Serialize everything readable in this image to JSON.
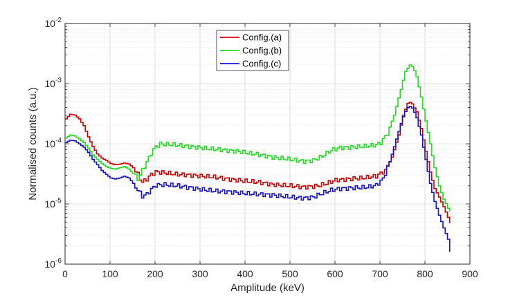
{
  "chart_data": {
    "type": "line",
    "title": "",
    "xlabel": "Amplitude (keV)",
    "ylabel": "Normalised counts (a.u.)",
    "xlim": [
      0,
      900
    ],
    "ylim": [
      1e-06,
      0.01
    ],
    "yscale": "log",
    "xticks": [
      0,
      100,
      200,
      300,
      400,
      500,
      600,
      700,
      800,
      900
    ],
    "xtick_labels": [
      "0",
      "100",
      "200",
      "300",
      "400",
      "500",
      "600",
      "700",
      "800",
      "900"
    ],
    "yticks": [
      1e-06,
      1e-05,
      0.0001,
      0.001,
      0.01
    ],
    "ytick_labels": [
      {
        "base": "10",
        "exp": "-6"
      },
      {
        "base": "10",
        "exp": "-5"
      },
      {
        "base": "10",
        "exp": "-4"
      },
      {
        "base": "10",
        "exp": "-3"
      },
      {
        "base": "10",
        "exp": "-2"
      }
    ],
    "grid": true,
    "legend_position": "top-center",
    "series": [
      {
        "name": "Config.(a)",
        "color": "#d40000",
        "points": [
          [
            0,
            0.00026
          ],
          [
            10,
            0.00031
          ],
          [
            20,
            0.0003
          ],
          [
            30,
            0.00026
          ],
          [
            40,
            0.0002
          ],
          [
            50,
            0.00013
          ],
          [
            60,
            9e-05
          ],
          [
            70,
            6.8e-05
          ],
          [
            80,
            5.8e-05
          ],
          [
            90,
            5.3e-05
          ],
          [
            100,
            4.7e-05
          ],
          [
            110,
            4.5e-05
          ],
          [
            120,
            4.6e-05
          ],
          [
            130,
            4.8e-05
          ],
          [
            140,
            4.6e-05
          ],
          [
            150,
            4e-05
          ],
          [
            160,
            3.1e-05
          ],
          [
            170,
            2.3e-05
          ],
          [
            180,
            2.6e-05
          ],
          [
            190,
            3.1e-05
          ],
          [
            200,
            3.4e-05
          ],
          [
            220,
            3.3e-05
          ],
          [
            250,
            3.1e-05
          ],
          [
            280,
            3e-05
          ],
          [
            300,
            2.9e-05
          ],
          [
            330,
            2.8e-05
          ],
          [
            360,
            2.6e-05
          ],
          [
            400,
            2.4e-05
          ],
          [
            430,
            2.3e-05
          ],
          [
            460,
            2.1e-05
          ],
          [
            500,
            2e-05
          ],
          [
            530,
            1.9e-05
          ],
          [
            560,
            2e-05
          ],
          [
            580,
            2.2e-05
          ],
          [
            600,
            2.5e-05
          ],
          [
            630,
            2.6e-05
          ],
          [
            660,
            2.7e-05
          ],
          [
            690,
            2.9e-05
          ],
          [
            710,
            3.6e-05
          ],
          [
            725,
            6e-05
          ],
          [
            740,
            0.00014
          ],
          [
            750,
            0.0003
          ],
          [
            760,
            0.00047
          ],
          [
            765,
            0.00049
          ],
          [
            770,
            0.00046
          ],
          [
            780,
            0.00034
          ],
          [
            790,
            0.00018
          ],
          [
            800,
            7.5e-05
          ],
          [
            810,
            3.4e-05
          ],
          [
            820,
            1.8e-05
          ],
          [
            830,
            1.3e-05
          ],
          [
            840,
            9e-06
          ],
          [
            850,
            6e-06
          ],
          [
            855,
            4.8e-06
          ]
        ]
      },
      {
        "name": "Config.(b)",
        "color": "#1ee01e",
        "points": [
          [
            0,
            0.000125
          ],
          [
            10,
            0.00014
          ],
          [
            20,
            0.000135
          ],
          [
            30,
            0.00012
          ],
          [
            40,
            0.000105
          ],
          [
            50,
            8.5e-05
          ],
          [
            60,
            6.5e-05
          ],
          [
            70,
            5.5e-05
          ],
          [
            80,
            4.7e-05
          ],
          [
            90,
            4.2e-05
          ],
          [
            100,
            3.9e-05
          ],
          [
            110,
            3.8e-05
          ],
          [
            120,
            4e-05
          ],
          [
            130,
            4.2e-05
          ],
          [
            140,
            3.8e-05
          ],
          [
            150,
            3.2e-05
          ],
          [
            160,
            2.6e-05
          ],
          [
            170,
            3.6e-05
          ],
          [
            180,
            5e-05
          ],
          [
            190,
            7e-05
          ],
          [
            200,
            9e-05
          ],
          [
            210,
            0.0001
          ],
          [
            230,
            9.8e-05
          ],
          [
            260,
            9.3e-05
          ],
          [
            300,
            8.6e-05
          ],
          [
            340,
            8e-05
          ],
          [
            380,
            7.5e-05
          ],
          [
            420,
            6.8e-05
          ],
          [
            460,
            6e-05
          ],
          [
            500,
            5.5e-05
          ],
          [
            530,
            5.1e-05
          ],
          [
            550,
            5.3e-05
          ],
          [
            570,
            6.2e-05
          ],
          [
            590,
            7.8e-05
          ],
          [
            610,
            8.6e-05
          ],
          [
            640,
            8.8e-05
          ],
          [
            670,
            9.2e-05
          ],
          [
            690,
            9.6e-05
          ],
          [
            700,
            0.000105
          ],
          [
            715,
            0.00015
          ],
          [
            730,
            0.0003
          ],
          [
            745,
            0.0008
          ],
          [
            755,
            0.0016
          ],
          [
            765,
            0.00205
          ],
          [
            772,
            0.0019
          ],
          [
            780,
            0.0013
          ],
          [
            790,
            0.0006
          ],
          [
            800,
            0.00024
          ],
          [
            810,
            0.0001
          ],
          [
            820,
            4e-05
          ],
          [
            830,
            2e-05
          ],
          [
            840,
            1.2e-05
          ],
          [
            850,
            8.5e-06
          ],
          [
            855,
            7.5e-06
          ]
        ]
      },
      {
        "name": "Config.(c)",
        "color": "#1414d2",
        "points": [
          [
            0,
            0.000105
          ],
          [
            10,
            0.000115
          ],
          [
            20,
            0.000112
          ],
          [
            30,
            0.0001
          ],
          [
            40,
            8.8e-05
          ],
          [
            50,
            7.2e-05
          ],
          [
            60,
            5.5e-05
          ],
          [
            70,
            4.5e-05
          ],
          [
            80,
            3.6e-05
          ],
          [
            90,
            3.1e-05
          ],
          [
            100,
            2.7e-05
          ],
          [
            110,
            2.6e-05
          ],
          [
            120,
            2.7e-05
          ],
          [
            130,
            2.9e-05
          ],
          [
            140,
            2.7e-05
          ],
          [
            150,
            2.2e-05
          ],
          [
            160,
            1.7e-05
          ],
          [
            170,
            1.35e-05
          ],
          [
            180,
            1.45e-05
          ],
          [
            190,
            1.75e-05
          ],
          [
            200,
            2.05e-05
          ],
          [
            220,
            2.1e-05
          ],
          [
            250,
            2e-05
          ],
          [
            280,
            1.85e-05
          ],
          [
            300,
            1.75e-05
          ],
          [
            330,
            1.65e-05
          ],
          [
            360,
            1.6e-05
          ],
          [
            400,
            1.5e-05
          ],
          [
            430,
            1.45e-05
          ],
          [
            460,
            1.4e-05
          ],
          [
            500,
            1.3e-05
          ],
          [
            530,
            1.25e-05
          ],
          [
            550,
            1.3e-05
          ],
          [
            570,
            1.5e-05
          ],
          [
            590,
            1.7e-05
          ],
          [
            610,
            1.8e-05
          ],
          [
            640,
            1.85e-05
          ],
          [
            670,
            1.9e-05
          ],
          [
            690,
            2.05e-05
          ],
          [
            705,
            2.6e-05
          ],
          [
            720,
            5e-05
          ],
          [
            735,
            0.00012
          ],
          [
            748,
            0.00026
          ],
          [
            758,
            0.00039
          ],
          [
            765,
            0.00042
          ],
          [
            772,
            0.00038
          ],
          [
            780,
            0.00027
          ],
          [
            790,
            0.00014
          ],
          [
            800,
            5.5e-05
          ],
          [
            810,
            2.2e-05
          ],
          [
            820,
            1.1e-05
          ],
          [
            830,
            6.5e-06
          ],
          [
            840,
            4e-06
          ],
          [
            850,
            2.6e-06
          ],
          [
            855,
            1.6e-06
          ]
        ]
      }
    ]
  }
}
